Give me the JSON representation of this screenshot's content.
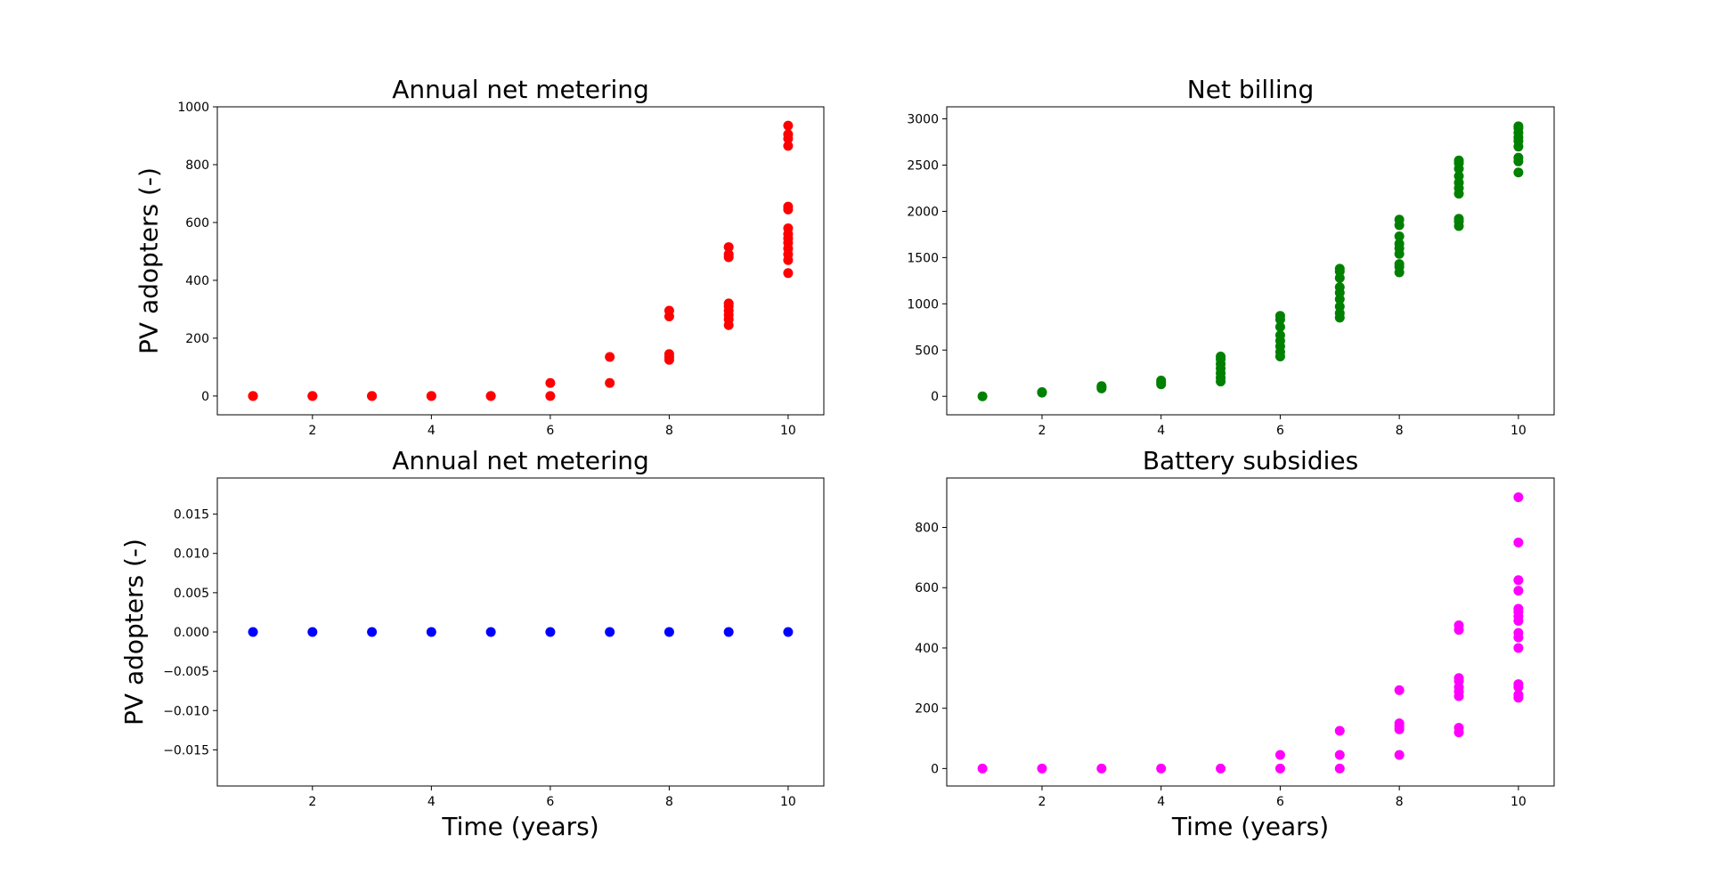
{
  "chart_data": [
    {
      "type": "scatter",
      "title": "Annual net metering",
      "ylabel": "PV adopters (-)",
      "color": "#ff0000",
      "x": [
        1,
        1,
        2,
        2,
        3,
        3,
        4,
        4,
        5,
        5,
        6,
        6,
        7,
        7,
        8,
        8,
        8,
        8,
        8,
        9,
        9,
        9,
        9,
        9,
        9,
        9,
        9,
        9,
        10,
        10,
        10,
        10,
        10,
        10,
        10,
        10,
        10,
        10,
        10,
        10,
        10,
        10
      ],
      "values": [
        0,
        0,
        0,
        0,
        0,
        0,
        0,
        0,
        0,
        0,
        0,
        45,
        45,
        135,
        125,
        135,
        145,
        275,
        295,
        245,
        265,
        280,
        295,
        310,
        320,
        480,
        490,
        515,
        425,
        470,
        490,
        510,
        530,
        545,
        560,
        580,
        645,
        655,
        865,
        890,
        905,
        935
      ],
      "xlim": [
        0.4,
        10.6
      ],
      "xticks": [
        2,
        4,
        6,
        8,
        10
      ],
      "ylim": [
        -65,
        1000
      ],
      "yticks": [
        0,
        200,
        400,
        600,
        800,
        1000
      ]
    },
    {
      "type": "scatter",
      "title": "Net billing",
      "color": "#008000",
      "x": [
        1,
        2,
        2,
        3,
        3,
        3,
        4,
        4,
        4,
        5,
        5,
        5,
        5,
        5,
        5,
        5,
        6,
        6,
        6,
        6,
        6,
        6,
        6,
        6,
        7,
        7,
        7,
        7,
        7,
        7,
        7,
        7,
        7,
        8,
        8,
        8,
        8,
        8,
        8,
        8,
        8,
        8,
        9,
        9,
        9,
        9,
        9,
        9,
        9,
        9,
        9,
        9,
        10,
        10,
        10,
        10,
        10,
        10,
        10,
        10,
        10
      ],
      "values": [
        0,
        40,
        45,
        85,
        100,
        110,
        130,
        150,
        170,
        160,
        200,
        250,
        300,
        350,
        400,
        430,
        430,
        480,
        540,
        600,
        660,
        750,
        830,
        870,
        850,
        900,
        970,
        1050,
        1120,
        1180,
        1280,
        1350,
        1380,
        1340,
        1400,
        1430,
        1540,
        1600,
        1650,
        1730,
        1850,
        1910,
        1840,
        1890,
        1920,
        2190,
        2250,
        2310,
        2380,
        2460,
        2520,
        2550,
        2420,
        2540,
        2580,
        2700,
        2760,
        2800,
        2850,
        2900,
        2920
      ],
      "xlim": [
        0.4,
        10.6
      ],
      "xticks": [
        2,
        4,
        6,
        8,
        10
      ],
      "ylim": [
        -200,
        3130
      ],
      "yticks": [
        0,
        500,
        1000,
        1500,
        2000,
        2500,
        3000
      ]
    },
    {
      "type": "scatter",
      "title": "Annual net metering",
      "ylabel": "PV adopters (-)",
      "xlabel": "Time (years)",
      "color": "#0000ff",
      "x": [
        1,
        2,
        3,
        4,
        5,
        6,
        7,
        8,
        9,
        10
      ],
      "values": [
        0,
        0,
        0,
        0,
        0,
        0,
        0,
        0,
        0,
        0
      ],
      "xlim": [
        0.4,
        10.6
      ],
      "xticks": [
        2,
        4,
        6,
        8,
        10
      ],
      "ylim": [
        -0.0196,
        0.0196
      ],
      "yticks": [
        {
          "value": -0.015,
          "label": "−0.015"
        },
        {
          "value": -0.01,
          "label": "−0.010"
        },
        {
          "value": -0.005,
          "label": "−0.005"
        },
        {
          "value": 0,
          "label": "0.000"
        },
        {
          "value": 0.005,
          "label": "0.005"
        },
        {
          "value": 0.01,
          "label": "0.010"
        },
        {
          "value": 0.015,
          "label": "0.015"
        }
      ]
    },
    {
      "type": "scatter",
      "title": "Battery subsidies",
      "xlabel": "Time (years)",
      "color": "#ff00ff",
      "x": [
        1,
        2,
        3,
        4,
        5,
        6,
        6,
        7,
        7,
        7,
        8,
        8,
        8,
        8,
        8,
        9,
        9,
        9,
        9,
        9,
        9,
        9,
        9,
        9,
        10,
        10,
        10,
        10,
        10,
        10,
        10,
        10,
        10,
        10,
        10,
        10,
        10,
        10,
        10
      ],
      "values": [
        0,
        0,
        0,
        0,
        0,
        0,
        45,
        0,
        45,
        125,
        45,
        130,
        140,
        150,
        260,
        120,
        135,
        240,
        255,
        270,
        290,
        300,
        460,
        475,
        235,
        245,
        270,
        280,
        400,
        435,
        450,
        490,
        505,
        520,
        530,
        590,
        625,
        750,
        900
      ],
      "xlim": [
        0.4,
        10.6
      ],
      "xticks": [
        2,
        4,
        6,
        8,
        10
      ],
      "ylim": [
        -58,
        964
      ],
      "yticks": [
        0,
        200,
        400,
        600,
        800
      ]
    }
  ]
}
